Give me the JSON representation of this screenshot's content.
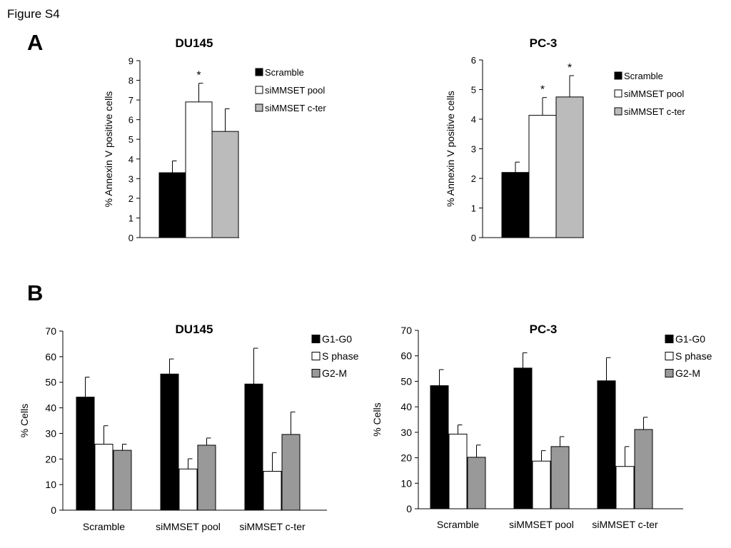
{
  "figure_label": "Figure S4",
  "panels": {
    "a": "A",
    "b": "B"
  },
  "colors": {
    "scramble": "#000000",
    "pool": "#ffffff",
    "cter": "#bbbbbb",
    "g1": "#000000",
    "s": "#ffffff",
    "g2": "#999999"
  },
  "chart_data": [
    {
      "type": "bar",
      "title": "DU145",
      "xlabel": "",
      "ylabel": "% Annexin V positive cells",
      "ylim": [
        0,
        9
      ],
      "yticks": [
        0,
        1,
        2,
        3,
        4,
        5,
        6,
        7,
        8,
        9
      ],
      "categories": [
        ""
      ],
      "series": [
        {
          "name": "Scramble",
          "values": [
            3.3
          ],
          "errors": [
            0.6
          ],
          "color": "#000000",
          "marker": ""
        },
        {
          "name": "siMMSET pool",
          "values": [
            6.9
          ],
          "errors": [
            0.95
          ],
          "color": "#ffffff",
          "marker": "*"
        },
        {
          "name": "siMMSET c-ter",
          "values": [
            5.4
          ],
          "errors": [
            1.15
          ],
          "color": "#bbbbbb",
          "marker": ""
        }
      ],
      "legend": "right"
    },
    {
      "type": "bar",
      "title": "PC-3",
      "xlabel": "",
      "ylabel": "% Annexin V positive cells",
      "ylim": [
        0,
        6
      ],
      "yticks": [
        0,
        1,
        2,
        3,
        4,
        5,
        6
      ],
      "categories": [
        ""
      ],
      "series": [
        {
          "name": "Scramble",
          "values": [
            2.2
          ],
          "errors": [
            0.35
          ],
          "color": "#000000",
          "marker": ""
        },
        {
          "name": "siMMSET pool",
          "values": [
            4.13
          ],
          "errors": [
            0.6
          ],
          "color": "#ffffff",
          "marker": "*"
        },
        {
          "name": "siMMSET c-ter",
          "values": [
            4.75
          ],
          "errors": [
            0.72
          ],
          "color": "#bbbbbb",
          "marker": "*"
        }
      ],
      "legend": "right"
    },
    {
      "type": "bar",
      "title": "DU145",
      "xlabel": "",
      "ylabel": "% Cells",
      "ylim": [
        0,
        70
      ],
      "yticks": [
        0,
        10,
        20,
        30,
        40,
        50,
        60,
        70
      ],
      "categories": [
        "Scramble",
        "siMMSET pool",
        "siMMSET c-ter"
      ],
      "series": [
        {
          "name": "G1-G0",
          "values": [
            44.2,
            53.2,
            49.3
          ],
          "errors": [
            7.8,
            5.9,
            14.0
          ],
          "color": "#000000"
        },
        {
          "name": "S phase",
          "values": [
            25.8,
            16.1,
            15.2
          ],
          "errors": [
            7.2,
            4.0,
            7.3
          ],
          "color": "#ffffff"
        },
        {
          "name": "G2-M",
          "values": [
            23.4,
            25.4,
            29.6
          ],
          "errors": [
            2.4,
            2.8,
            8.8
          ],
          "color": "#999999"
        }
      ],
      "legend": "top-right"
    },
    {
      "type": "bar",
      "title": "PC-3",
      "xlabel": "",
      "ylabel": "% Cells",
      "ylim": [
        0,
        70
      ],
      "yticks": [
        0,
        10,
        20,
        30,
        40,
        50,
        60,
        70
      ],
      "categories": [
        "Scramble",
        "siMMSET pool",
        "siMMSET c-ter"
      ],
      "series": [
        {
          "name": "G1-G0",
          "values": [
            48.3,
            55.2,
            50.2
          ],
          "errors": [
            6.3,
            6.0,
            9.1
          ],
          "color": "#000000"
        },
        {
          "name": "S phase",
          "values": [
            29.3,
            18.7,
            16.6
          ],
          "errors": [
            3.6,
            4.1,
            7.8
          ],
          "color": "#ffffff"
        },
        {
          "name": "G2-M",
          "values": [
            20.2,
            24.4,
            31.1
          ],
          "errors": [
            4.8,
            3.9,
            4.8
          ],
          "color": "#999999"
        }
      ],
      "legend": "top-right"
    }
  ]
}
